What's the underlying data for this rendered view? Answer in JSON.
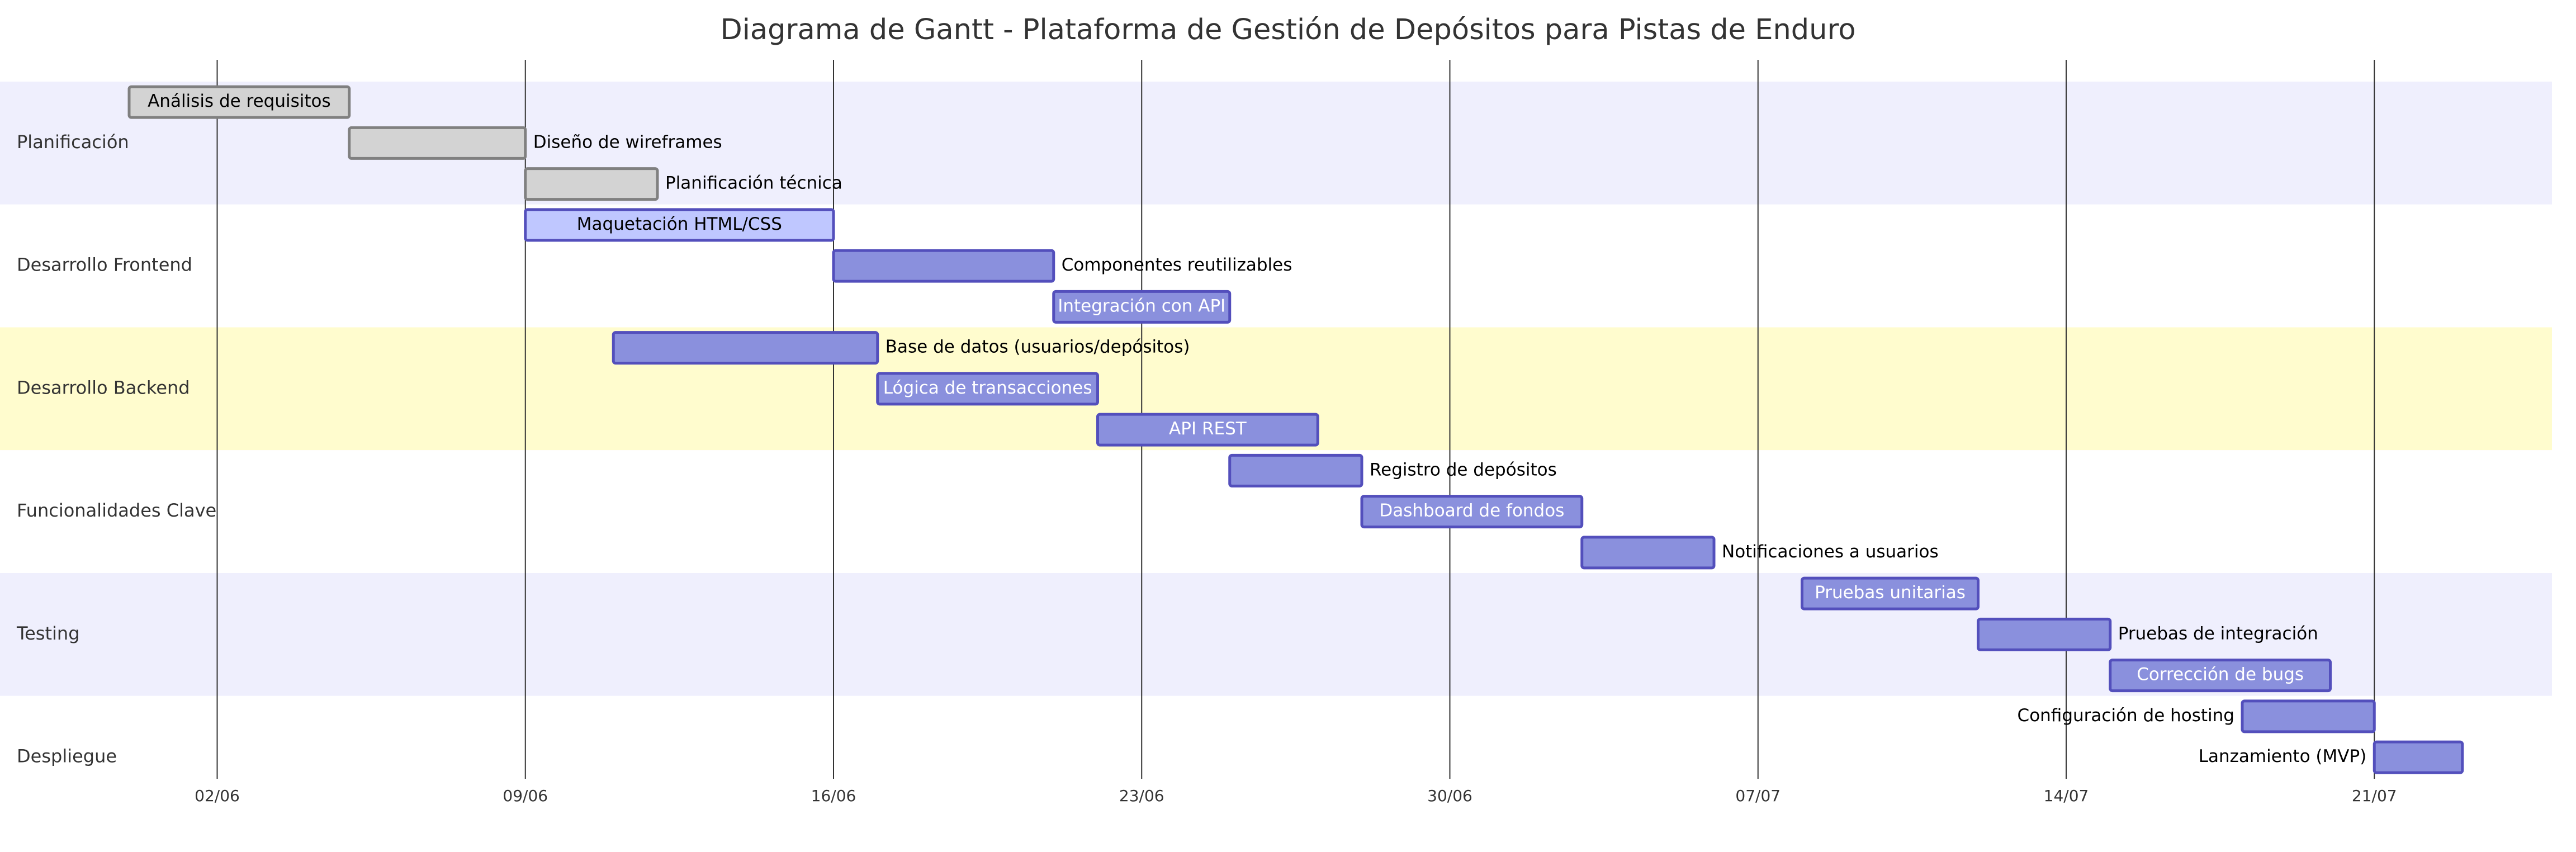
{
  "chart_data": {
    "type": "gantt",
    "title": "Diagrama de Gantt - Plataforma de Gestión de Depósitos para Pistas de Enduro",
    "x_ticks": [
      "02/06",
      "09/06",
      "16/06",
      "23/06",
      "30/06",
      "07/07",
      "14/07",
      "21/07"
    ],
    "x_range": [
      "2024-05-31",
      "2024-07-26"
    ],
    "grid": true,
    "sections": [
      {
        "name": "Planificación",
        "band_color": "#efeffd"
      },
      {
        "name": "Desarrollo Frontend",
        "band_color": "#ffffff"
      },
      {
        "name": "Desarrollo Backend",
        "band_color": "#fffcce"
      },
      {
        "name": "Funcionalidades Clave",
        "band_color": "#ffffff"
      },
      {
        "name": "Testing",
        "band_color": "#efeffd"
      },
      {
        "name": "Despliegue",
        "band_color": "#ffffff"
      }
    ],
    "tasks": [
      {
        "name": "Análisis de requisitos",
        "section": 0,
        "start": "2024-05-31",
        "end": "2024-06-05",
        "status": "done"
      },
      {
        "name": "Diseño de wireframes",
        "section": 0,
        "start": "2024-06-05",
        "end": "2024-06-09",
        "status": "done"
      },
      {
        "name": "Planificación técnica",
        "section": 0,
        "start": "2024-06-09",
        "end": "2024-06-12",
        "status": "done"
      },
      {
        "name": "Maquetación HTML/CSS",
        "section": 1,
        "start": "2024-06-09",
        "end": "2024-06-16",
        "status": "active"
      },
      {
        "name": "Componentes reutilizables",
        "section": 1,
        "start": "2024-06-16",
        "end": "2024-06-21",
        "status": "pending"
      },
      {
        "name": "Integración con API",
        "section": 1,
        "start": "2024-06-21",
        "end": "2024-06-25",
        "status": "pending"
      },
      {
        "name": "Base de datos (usuarios/depósitos)",
        "section": 2,
        "start": "2024-06-11",
        "end": "2024-06-17",
        "status": "pending"
      },
      {
        "name": "Lógica de transacciones",
        "section": 2,
        "start": "2024-06-17",
        "end": "2024-06-22",
        "status": "pending"
      },
      {
        "name": "API REST",
        "section": 2,
        "start": "2024-06-22",
        "end": "2024-06-27",
        "status": "pending"
      },
      {
        "name": "Registro de depósitos",
        "section": 3,
        "start": "2024-06-25",
        "end": "2024-06-28",
        "status": "pending"
      },
      {
        "name": "Dashboard de fondos",
        "section": 3,
        "start": "2024-06-28",
        "end": "2024-07-03",
        "status": "pending"
      },
      {
        "name": "Notificaciones a usuarios",
        "section": 3,
        "start": "2024-07-03",
        "end": "2024-07-06",
        "status": "pending"
      },
      {
        "name": "Pruebas unitarias",
        "section": 4,
        "start": "2024-07-08",
        "end": "2024-07-12",
        "status": "pending"
      },
      {
        "name": "Pruebas de integración",
        "section": 4,
        "start": "2024-07-12",
        "end": "2024-07-15",
        "status": "pending"
      },
      {
        "name": "Corrección de bugs",
        "section": 4,
        "start": "2024-07-15",
        "end": "2024-07-20",
        "status": "pending"
      },
      {
        "name": "Configuración de hosting",
        "section": 5,
        "start": "2024-07-18",
        "end": "2024-07-21",
        "status": "pending"
      },
      {
        "name": "Lanzamiento (MVP)",
        "section": 5,
        "start": "2024-07-21",
        "end": "2024-07-23",
        "status": "pending"
      }
    ],
    "status_styles": {
      "done": {
        "fill": "#d3d3d3",
        "stroke": "#808080",
        "text": "#000000"
      },
      "active": {
        "fill": "#bfc7ff",
        "stroke": "#534fbc",
        "text": "#000000"
      },
      "pending": {
        "fill": "#8a90dd",
        "stroke": "#534fbc",
        "text": "#ffffff"
      }
    },
    "grid_color": "#333333",
    "outside_text_color": "#000000"
  }
}
